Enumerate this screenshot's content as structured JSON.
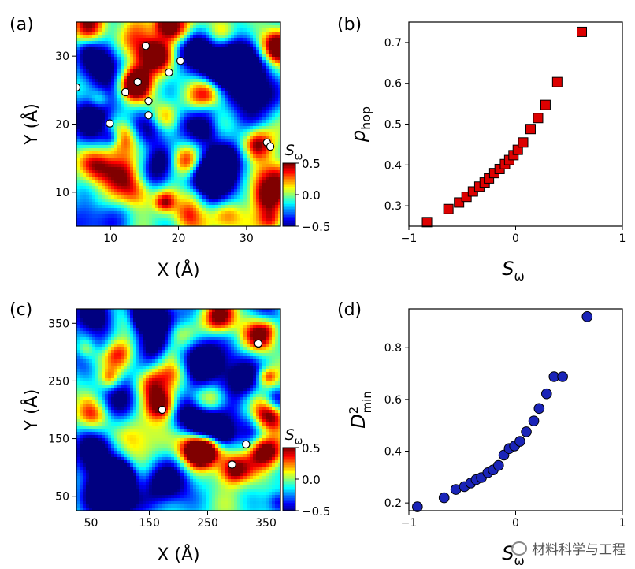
{
  "colors": {
    "red_marker": "#dd0000",
    "blue_marker": "#1a24b8",
    "colormap": "jet"
  },
  "watermark": "材料科学与工程",
  "chart_data": [
    {
      "panel": "(a)",
      "type": "heatmap",
      "xlabel": "X (Å)",
      "ylabel": "Y (Å)",
      "xlim": [
        5,
        35
      ],
      "ylim": [
        5,
        35
      ],
      "xticks": [
        10,
        20,
        30
      ],
      "yticks": [
        10,
        20,
        30
      ],
      "colorbar": {
        "label": "Sω",
        "range": [
          -0.5,
          0.5
        ],
        "ticks": [
          "0.5",
          "0.0",
          "−0.5"
        ]
      },
      "seed": 7,
      "hot_spots": [
        [
          13.5,
          26.0,
          0.9
        ],
        [
          16.5,
          30.0,
          0.7
        ],
        [
          19.5,
          34.0,
          0.6
        ],
        [
          31.5,
          17.0,
          0.8
        ],
        [
          34.5,
          31.5,
          0.8
        ],
        [
          26.5,
          33.5,
          0.6
        ],
        [
          21.0,
          14.5,
          0.55
        ],
        [
          24.5,
          24.5,
          0.5
        ],
        [
          12.0,
          18.0,
          0.45
        ],
        [
          8.0,
          14.0,
          0.45
        ],
        [
          27.0,
          6.5,
          0.45
        ],
        [
          18.0,
          21.0,
          0.45
        ],
        [
          33.0,
          9.0,
          0.45
        ]
      ],
      "cold_spots": [
        [
          25.0,
          11.0,
          -0.9
        ],
        [
          16.0,
          12.0,
          -0.8
        ],
        [
          9.5,
          29.0,
          -0.75
        ],
        [
          27.5,
          29.0,
          -0.7
        ],
        [
          7.5,
          21.0,
          -0.6
        ],
        [
          31.0,
          24.0,
          -0.6
        ],
        [
          21.0,
          21.0,
          -0.5
        ]
      ],
      "points": [
        [
          15.2,
          31.5
        ],
        [
          20.3,
          29.3
        ],
        [
          18.6,
          27.6
        ],
        [
          14.0,
          26.2
        ],
        [
          12.2,
          24.7
        ],
        [
          15.6,
          23.4
        ],
        [
          15.6,
          21.3
        ],
        [
          9.9,
          20.1
        ],
        [
          5.0,
          25.4
        ],
        [
          33.0,
          17.3
        ],
        [
          33.5,
          16.7
        ]
      ]
    },
    {
      "panel": "(b)",
      "type": "scatter",
      "marker": "square",
      "xlabel": "Sω",
      "ylabel": "phop",
      "xlim": [
        -1,
        1
      ],
      "ylim": [
        0.25,
        0.75
      ],
      "xticks": [
        -1,
        0,
        1
      ],
      "yticks": [
        0.3,
        0.4,
        0.5,
        0.6,
        0.7
      ],
      "x": [
        -0.83,
        -0.63,
        -0.53,
        -0.46,
        -0.4,
        -0.34,
        -0.29,
        -0.25,
        -0.2,
        -0.15,
        -0.1,
        -0.06,
        -0.02,
        0.02,
        0.07,
        0.14,
        0.21,
        0.28,
        0.39,
        0.62
      ],
      "y": [
        0.26,
        0.292,
        0.308,
        0.322,
        0.335,
        0.347,
        0.357,
        0.367,
        0.38,
        0.39,
        0.402,
        0.412,
        0.424,
        0.437,
        0.455,
        0.488,
        0.515,
        0.547,
        0.603,
        0.726
      ]
    },
    {
      "panel": "(c)",
      "type": "heatmap",
      "xlabel": "X (Å)",
      "ylabel": "Y (Å)",
      "xlim": [
        25,
        375
      ],
      "ylim": [
        25,
        375
      ],
      "xticks": [
        50,
        150,
        250,
        350
      ],
      "yticks": [
        50,
        150,
        250,
        350
      ],
      "colorbar": {
        "label": "Sω",
        "range": [
          -0.5,
          0.5
        ],
        "ticks": [
          "0.5",
          "0.0",
          "−0.5"
        ]
      },
      "seed": 31,
      "hot_spots": [
        [
          172.0,
          208.0,
          0.85
        ],
        [
          355.0,
          185.0,
          0.8
        ],
        [
          345.0,
          130.0,
          0.7
        ],
        [
          230.0,
          130.0,
          0.7
        ],
        [
          295.0,
          95.0,
          0.75
        ],
        [
          270.0,
          360.0,
          0.6
        ],
        [
          95.0,
          300.0,
          0.5
        ],
        [
          150.0,
          245.0,
          0.5
        ],
        [
          340.0,
          330.0,
          0.6
        ],
        [
          55.0,
          190.0,
          0.45
        ],
        [
          200.0,
          330.0,
          0.45
        ],
        [
          120.0,
          60.0,
          0.45
        ]
      ],
      "cold_spots": [
        [
          250.0,
          170.0,
          -0.9
        ],
        [
          240.0,
          285.0,
          -0.8
        ],
        [
          150.0,
          355.0,
          -0.7
        ],
        [
          60.0,
          120.0,
          -0.7
        ],
        [
          60.0,
          360.0,
          -0.65
        ],
        [
          310.0,
          250.0,
          -0.6
        ],
        [
          180.0,
          70.0,
          -0.6
        ],
        [
          110.0,
          225.0,
          -0.5
        ]
      ],
      "points": [
        [
          172.0,
          200.0
        ],
        [
          292.0,
          105.0
        ],
        [
          316.0,
          140.0
        ],
        [
          337.0,
          315.0
        ]
      ]
    },
    {
      "panel": "(d)",
      "type": "scatter",
      "marker": "circle",
      "xlabel": "Sω",
      "ylabel": "D²min",
      "xlim": [
        -1,
        1
      ],
      "ylim": [
        0.17,
        0.95
      ],
      "xticks": [
        -1,
        0,
        1
      ],
      "yticks": [
        0.2,
        0.4,
        0.6,
        0.8
      ],
      "x": [
        -0.92,
        -0.67,
        -0.56,
        -0.48,
        -0.42,
        -0.37,
        -0.32,
        -0.26,
        -0.21,
        -0.16,
        -0.11,
        -0.06,
        -0.01,
        0.04,
        0.1,
        0.17,
        0.22,
        0.29,
        0.36,
        0.44,
        0.67
      ],
      "y": [
        0.185,
        0.22,
        0.252,
        0.263,
        0.277,
        0.29,
        0.298,
        0.317,
        0.328,
        0.345,
        0.385,
        0.41,
        0.42,
        0.438,
        0.475,
        0.517,
        0.565,
        0.622,
        0.688,
        0.688,
        0.92
      ]
    }
  ]
}
